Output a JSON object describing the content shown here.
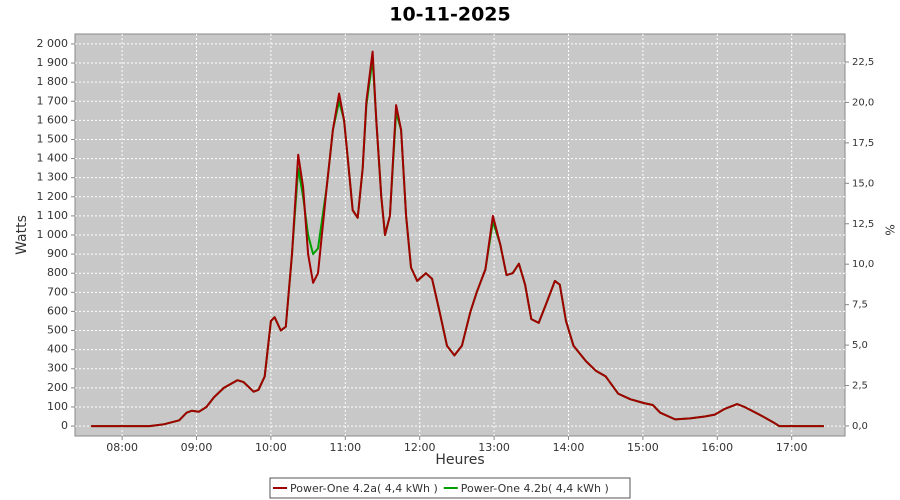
{
  "chart_data": {
    "type": "line",
    "title": "10-11-2025",
    "xlabel": "Heures",
    "ylabel": "Watts",
    "y2label": "%",
    "x": [
      455,
      502,
      514,
      526,
      532,
      536,
      542,
      548,
      554,
      562,
      573,
      578,
      586,
      590,
      595,
      600,
      603,
      608,
      612,
      617,
      622,
      626,
      630,
      634,
      638,
      645,
      650,
      655,
      659,
      662,
      666,
      670,
      674,
      677,
      682,
      685,
      689,
      692,
      696,
      701,
      705,
      709,
      713,
      718,
      725,
      730,
      736,
      742,
      748,
      754,
      761,
      766,
      773,
      779,
      785,
      790,
      795,
      800,
      805,
      810,
      816,
      822,
      829,
      833,
      838,
      844,
      854,
      862,
      870,
      880,
      890,
      901,
      908,
      914,
      926,
      938,
      950,
      958,
      966,
      976,
      982,
      994,
      1005,
      1010,
      1046
    ],
    "series": [
      {
        "name": "Power-One 4.2a( 4,4 kWh )",
        "color": "#a00000",
        "values": [
          0,
          0,
          10,
          30,
          70,
          80,
          75,
          100,
          150,
          200,
          240,
          230,
          180,
          190,
          260,
          550,
          570,
          500,
          520,
          900,
          1420,
          1250,
          900,
          750,
          800,
          1250,
          1550,
          1740,
          1600,
          1400,
          1130,
          1090,
          1350,
          1700,
          1960,
          1600,
          1200,
          1000,
          1100,
          1680,
          1550,
          1100,
          830,
          760,
          800,
          770,
          600,
          420,
          370,
          420,
          600,
          700,
          820,
          1100,
          950,
          790,
          800,
          850,
          740,
          560,
          540,
          640,
          760,
          740,
          550,
          420,
          340,
          290,
          260,
          170,
          140,
          120,
          110,
          70,
          35,
          40,
          50,
          60,
          90,
          115,
          100,
          60,
          20,
          0,
          0
        ]
      },
      {
        "name": "Power-One 4.2b( 4,4 kWh )",
        "color": "#00a000",
        "values": [
          0,
          0,
          10,
          30,
          70,
          80,
          75,
          100,
          150,
          200,
          240,
          230,
          180,
          190,
          260,
          550,
          570,
          500,
          520,
          900,
          1350,
          1200,
          1000,
          900,
          930,
          1250,
          1550,
          1700,
          1600,
          1400,
          1130,
          1090,
          1350,
          1680,
          1920,
          1600,
          1200,
          1000,
          1100,
          1640,
          1550,
          1100,
          830,
          760,
          800,
          770,
          600,
          420,
          370,
          420,
          600,
          700,
          820,
          1070,
          950,
          790,
          800,
          850,
          740,
          560,
          540,
          640,
          760,
          740,
          550,
          420,
          340,
          290,
          260,
          170,
          140,
          120,
          110,
          70,
          35,
          40,
          50,
          60,
          90,
          115,
          100,
          60,
          20,
          0,
          0
        ]
      }
    ],
    "xlim": [
      442,
      1063
    ],
    "xticks": [
      {
        "value": 480,
        "label": "08:00"
      },
      {
        "value": 540,
        "label": "09:00"
      },
      {
        "value": 600,
        "label": "10:00"
      },
      {
        "value": 660,
        "label": "11:00"
      },
      {
        "value": 720,
        "label": "12:00"
      },
      {
        "value": 780,
        "label": "13:00"
      },
      {
        "value": 840,
        "label": "14:00"
      },
      {
        "value": 900,
        "label": "15:00"
      },
      {
        "value": 960,
        "label": "16:00"
      },
      {
        "value": 1020,
        "label": "17:00"
      }
    ],
    "ylim": [
      -52,
      2052
    ],
    "yticks": [
      0,
      100,
      200,
      300,
      400,
      500,
      600,
      700,
      800,
      900,
      {
        "value": 1000,
        "label": "1 000"
      },
      {
        "value": 1100,
        "label": "1 100"
      },
      {
        "value": 1200,
        "label": "1 200"
      },
      {
        "value": 1300,
        "label": "1 300"
      },
      {
        "value": 1400,
        "label": "1 400"
      },
      {
        "value": 1500,
        "label": "1 500"
      },
      {
        "value": 1600,
        "label": "1 600"
      },
      {
        "value": 1700,
        "label": "1 700"
      },
      {
        "value": 1800,
        "label": "1 800"
      },
      {
        "value": 1900,
        "label": "1 900"
      },
      {
        "value": 2000,
        "label": "2 000"
      }
    ],
    "y2lim": [
      -0.62,
      24.23
    ],
    "y2ticks": [
      {
        "value": 0,
        "label": "0,0"
      },
      {
        "value": 2.5,
        "label": "2,5"
      },
      {
        "value": 5,
        "label": "5,0"
      },
      {
        "value": 7.5,
        "label": "7,5"
      },
      {
        "value": 10,
        "label": "10,0"
      },
      {
        "value": 12.5,
        "label": "12,5"
      },
      {
        "value": 15,
        "label": "15,0"
      },
      {
        "value": 17.5,
        "label": "17,5"
      },
      {
        "value": 20,
        "label": "20,0"
      },
      {
        "value": 22.5,
        "label": "22,5"
      }
    ],
    "grid": true,
    "legend": "bottom"
  }
}
